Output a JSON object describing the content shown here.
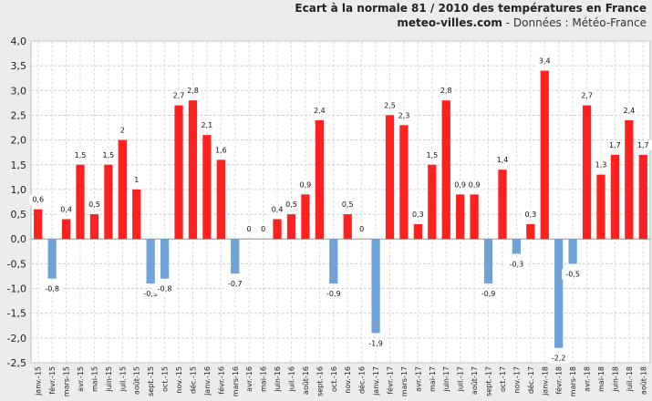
{
  "header": {
    "title": "Ecart à la normale 81 / 2010 des températures en France",
    "site": "meteo-villes.com",
    "source": " - Données : Météo-France"
  },
  "chart_data": {
    "type": "bar",
    "title": "Ecart à la normale 81 / 2010 des températures en France",
    "xlabel": "",
    "ylabel": "",
    "ylim": [
      -2.5,
      4.0
    ],
    "ytick_step": 0.5,
    "grid": true,
    "colors": {
      "positive": "#ff2020",
      "negative": "#6fa3d8"
    },
    "categories": [
      "janv.-15",
      "févr.-15",
      "mars-15",
      "avr.-15",
      "mai-15",
      "juin-15",
      "juil.-15",
      "août-15",
      "sept.-15",
      "oct.-15",
      "nov.-15",
      "déc.-15",
      "janv.-16",
      "févr.-16",
      "mars-16",
      "avr.-16",
      "mai-16",
      "juin-16",
      "juil.-16",
      "août-16",
      "sept.-16",
      "oct.-16",
      "nov.-16",
      "déc.-16",
      "janv.-17",
      "févr.-17",
      "mars-17",
      "avr.-17",
      "mai-17",
      "juin-17",
      "juil.-17",
      "août-17",
      "sept.-17",
      "oct.-17",
      "nov.-17",
      "déc.-17",
      "janv.-18",
      "févr.-18",
      "mars-18",
      "avr.-18",
      "mai-18",
      "juin-18",
      "juil.-18",
      "août-18"
    ],
    "values": [
      0.6,
      -0.8,
      0.4,
      1.5,
      0.5,
      1.5,
      2.0,
      1.0,
      -0.9,
      -0.8,
      2.7,
      2.8,
      2.1,
      1.6,
      -0.7,
      0,
      0,
      0.4,
      0.5,
      0.9,
      2.4,
      -0.9,
      0.5,
      0,
      -1.9,
      2.5,
      2.3,
      0.3,
      1.5,
      2.8,
      0.9,
      0.9,
      -0.9,
      1.4,
      -0.3,
      0.3,
      3.4,
      -2.2,
      -0.5,
      2.7,
      1.3,
      1.7,
      2.4,
      1.7
    ],
    "labels": [
      "0,6",
      "-0,8",
      "0,4",
      "1,5",
      "0,5",
      "1,5",
      "2",
      "1",
      "-0,9",
      "-0,8",
      "2,7",
      "2,8",
      "2,1",
      "1,6",
      "-0,7",
      "0",
      "0",
      "0,4",
      "0,5",
      "0,9",
      "2,4",
      "-0,9",
      "0,5",
      "0",
      "-1,9",
      "2,5",
      "2,3",
      "0,3",
      "1,5",
      "2,8",
      "0,9",
      "0,9",
      "-0,9",
      "1,4",
      "-0,3",
      "0,3",
      "3,4",
      "-2,2",
      "-0,5",
      "2,7",
      "1,3",
      "1,7",
      "2,4",
      "1,7"
    ],
    "ytick_labels": [
      "4,0",
      "3,5",
      "3,0",
      "2,5",
      "2,0",
      "1,5",
      "1,0",
      "0,5",
      "0,0",
      "-0,5",
      "-1,0",
      "-1,5",
      "-2,0",
      "-2,5"
    ]
  }
}
